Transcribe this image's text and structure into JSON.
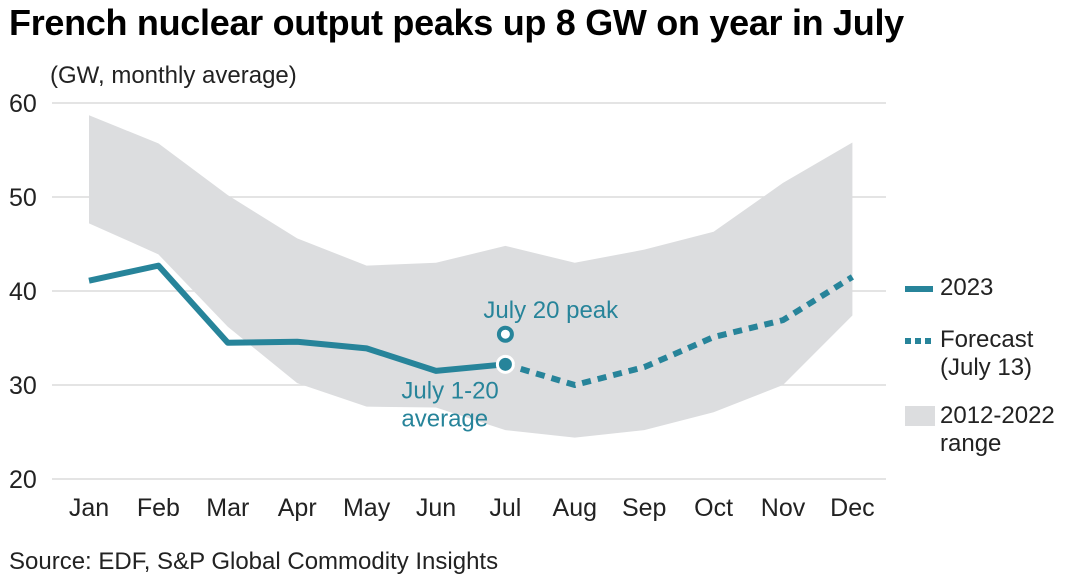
{
  "chart_data": {
    "type": "line",
    "title": "French nuclear output peaks up 8 GW on year in July",
    "subtitle": "(GW, monthly average)",
    "xlabel": "",
    "ylabel": "GW, monthly average",
    "categories": [
      "Jan",
      "Feb",
      "Mar",
      "Apr",
      "May",
      "Jun",
      "Jul",
      "Aug",
      "Sep",
      "Oct",
      "Nov",
      "Dec"
    ],
    "ylim": [
      20,
      60
    ],
    "yticks": [
      20,
      30,
      40,
      50,
      60
    ],
    "grid": true,
    "series": [
      {
        "name": "2023",
        "style": "solid",
        "color": "#27849A",
        "values": [
          41.1,
          42.7,
          34.5,
          34.6,
          33.9,
          31.5,
          32.2,
          null,
          null,
          null,
          null,
          null
        ]
      },
      {
        "name": "Forecast (July 13)",
        "style": "dotted",
        "color": "#27849A",
        "values": [
          null,
          null,
          null,
          null,
          null,
          null,
          32.2,
          30.0,
          31.9,
          35.1,
          36.9,
          41.5
        ]
      },
      {
        "name": "2012-2022 range",
        "style": "band",
        "color": "#DCDDDF",
        "max": [
          58.7,
          55.7,
          50.2,
          45.6,
          42.7,
          43.0,
          44.8,
          43.0,
          44.4,
          46.3,
          51.5,
          55.8
        ],
        "min": [
          47.2,
          43.9,
          36.2,
          30.2,
          27.7,
          27.6,
          25.2,
          24.4,
          25.2,
          27.1,
          30.0,
          37.4
        ]
      }
    ],
    "annotations": [
      {
        "label": "July 20 peak",
        "category": "Jul",
        "value": 35.4,
        "marker": "hollow-circle"
      },
      {
        "label_lines": [
          "July 1-20",
          "average"
        ],
        "category": "Jul",
        "value": 32.2,
        "marker": "filled-circle"
      }
    ],
    "legend": {
      "placement": "right",
      "items": [
        {
          "label_lines": [
            "2023"
          ],
          "type": "solid"
        },
        {
          "label_lines": [
            "Forecast",
            "(July 13)"
          ],
          "type": "dotted"
        },
        {
          "label_lines": [
            "2012-2022",
            "range"
          ],
          "type": "band"
        }
      ]
    },
    "source": "Source: EDF, S&P Global Commodity Insights"
  }
}
